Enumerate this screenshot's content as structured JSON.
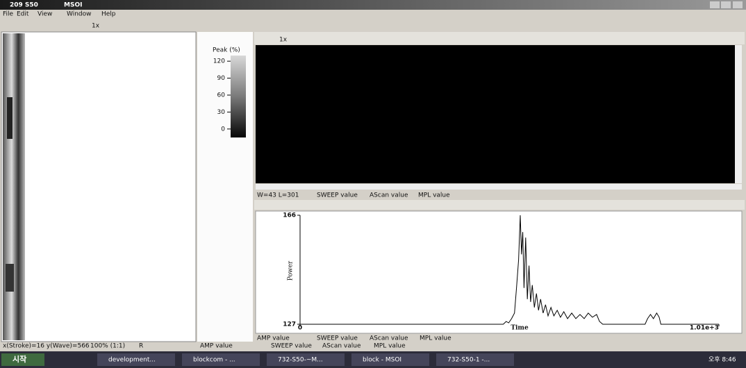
{
  "window": {
    "title": "209 S50",
    "app": "MSOI"
  },
  "menu": [
    "File",
    "Edit",
    "View",
    "Window",
    "Help"
  ],
  "toolbars": {
    "main_zoom": "1x",
    "view_zoom": "1x"
  },
  "colorbar": {
    "label": "Peak (%)",
    "lim": [
      -15,
      130
    ],
    "ticks": [
      120,
      90,
      60,
      30,
      0
    ]
  },
  "view_status": [
    "W=43 L=301",
    "SWEEP value",
    "AScan value",
    "MPL value"
  ],
  "chart_data": {
    "type": "line",
    "ylabel": "Power",
    "xlabel": "Time",
    "color": "#000000",
    "x": [
      0,
      490,
      497,
      503,
      510,
      517,
      522,
      527,
      531,
      534,
      537,
      540,
      544,
      548,
      552,
      556,
      560,
      565,
      570,
      575,
      580,
      586,
      592,
      598,
      605,
      612,
      620,
      628,
      636,
      645,
      655,
      665,
      675,
      685,
      695,
      705,
      715,
      722,
      730,
      832,
      838,
      845,
      852,
      860,
      866,
      870,
      1010
    ],
    "values": [
      127,
      127,
      128,
      127.5,
      129,
      131,
      140,
      150,
      166,
      152,
      160,
      140,
      158,
      136,
      148,
      135,
      141,
      133,
      138,
      132,
      136,
      131,
      134,
      130,
      133,
      130,
      132,
      129.5,
      131.5,
      129,
      131,
      129,
      130.5,
      129,
      131,
      129.5,
      130.5,
      128,
      127,
      127,
      129,
      130.5,
      129,
      131,
      129.5,
      127,
      127
    ],
    "xlim": [
      0,
      1010
    ],
    "ylim": [
      127,
      166
    ],
    "xticks": [
      0,
      {
        "value": 1010,
        "label": "1.01e+3"
      }
    ],
    "yticks": [
      166,
      127
    ]
  },
  "plot_status": [
    "AMP value",
    "SWEEP value",
    "AScan value",
    "MPL value"
  ],
  "status_bar": [
    "x(Stroke)=16 y(Wave)=566",
    "100% (1:1)",
    "R",
    "AMP value",
    "SWEEP value",
    "AScan value",
    "MPL value"
  ],
  "taskbar": {
    "start": "시작",
    "tasks": [
      "development...",
      "blockcom - ...",
      "732-S50-~M...",
      "block - MSOI",
      "732-S50-1 -..."
    ],
    "clock": "오후 8:46"
  }
}
